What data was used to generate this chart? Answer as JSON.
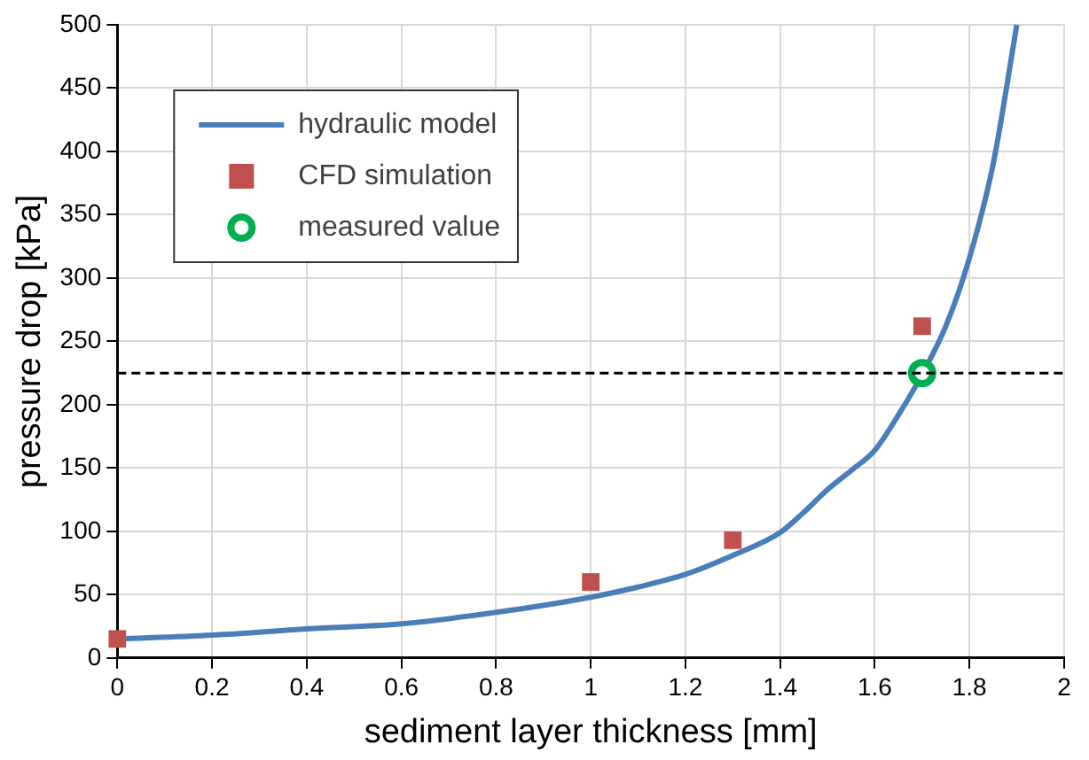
{
  "chart_data": {
    "type": "line",
    "xlabel": "sediment layer thickness [mm]",
    "ylabel": "pressure drop [kPa]",
    "xlim": [
      0,
      2
    ],
    "xticks": [
      0,
      0.2,
      0.4,
      0.6,
      0.8,
      1,
      1.2,
      1.4,
      1.6,
      1.8,
      2
    ],
    "ylim": [
      0,
      500
    ],
    "yticks": [
      0,
      50,
      100,
      150,
      200,
      250,
      300,
      350,
      400,
      450,
      500
    ],
    "grid": true,
    "legend": "top left",
    "series": [
      {
        "name": "hydraulic model",
        "type": "line",
        "color": "#4a7ebb",
        "marker": "none",
        "x": [
          0,
          0.2,
          0.4,
          0.6,
          0.8,
          1,
          1.1,
          1.2,
          1.3,
          1.4,
          1.45,
          1.5,
          1.55,
          1.6,
          1.65,
          1.7,
          1.75,
          1.8,
          1.85,
          1.9
        ],
        "values": [
          15,
          18,
          23,
          27,
          36,
          48,
          56,
          66,
          81,
          99,
          115,
          133,
          148,
          164,
          192,
          224,
          262,
          316,
          390,
          500
        ]
      },
      {
        "name": "CFD simulation",
        "type": "scatter",
        "color": "#c0504d",
        "marker": "square",
        "x": [
          0,
          1,
          1.3,
          1.7
        ],
        "values": [
          15,
          60,
          93,
          262
        ]
      },
      {
        "name": "measured value",
        "type": "scatter",
        "color": "#00b050",
        "marker": "circle",
        "x": [
          1.7
        ],
        "values": [
          225
        ]
      }
    ],
    "ref_lines": [
      {
        "axis": "y",
        "value": 225,
        "color": "#000000",
        "line_style": "dashed"
      }
    ]
  }
}
